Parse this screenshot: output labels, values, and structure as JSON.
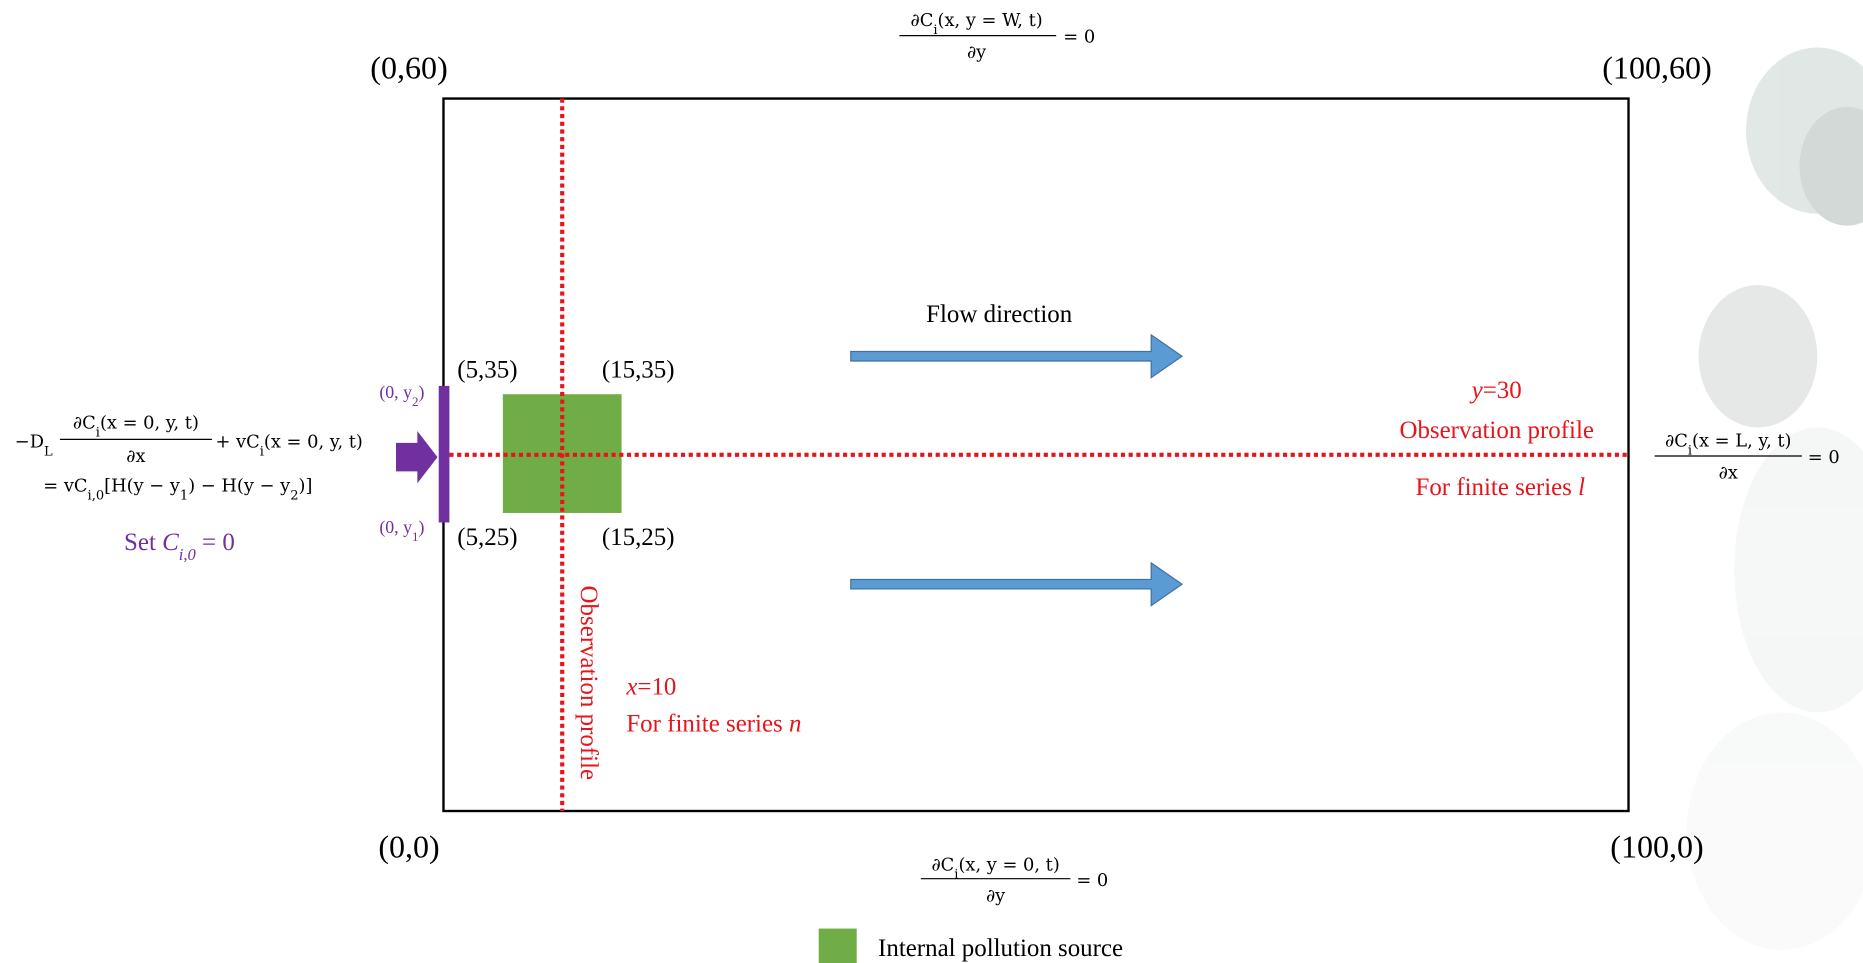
{
  "corners": {
    "top_left": "(0,60)",
    "top_right": "(100,60)",
    "bottom_left": "(0,0)",
    "bottom_right": "(100,0)"
  },
  "top_condition": {
    "numerator": [
      "∂C",
      "i",
      "(x, y = W, t)"
    ],
    "denominator": "∂y",
    "rhs": "= 0"
  },
  "bottom_condition": {
    "numerator": [
      "∂C",
      "i",
      "(x, y = 0, t)"
    ],
    "denominator": "∂y",
    "rhs": "= 0"
  },
  "right_condition": {
    "numerator": [
      "∂C",
      "i",
      "(x = L, y, t)"
    ],
    "denominator": "∂x",
    "rhs": "= 0"
  },
  "left_condition": {
    "lead": [
      "−D",
      "L"
    ],
    "numerator": [
      "∂C",
      "i",
      "(x = 0, y, t)"
    ],
    "denominator": "∂x",
    "advection": [
      "+ vC",
      "i",
      "(x = 0, y, t)"
    ],
    "line2": [
      "= vC",
      "i,0",
      "[H(y − y",
      "1",
      ") − H(y − y",
      "2",
      ")]"
    ],
    "setting": [
      "Set ",
      "C",
      "i,0",
      " = 0"
    ]
  },
  "inlet_labels": {
    "upper": [
      "(0, y",
      "2",
      ")"
    ],
    "lower": [
      "(0, y",
      "1",
      ")"
    ]
  },
  "source_corners": {
    "top_left": "(5,35)",
    "top_right": "(15,35)",
    "bottom_left": "(5,25)",
    "bottom_right": "(15,25)"
  },
  "horizontal_profile": {
    "position": [
      "y",
      "=30"
    ],
    "label": "Observation profile",
    "series": [
      "For finite series ",
      "l"
    ]
  },
  "vertical_profile": {
    "label": "Observation profile",
    "position": [
      "x",
      "=10"
    ],
    "series": [
      "For finite series ",
      "n"
    ]
  },
  "flow_label": "Flow direction",
  "legend": {
    "label": "Internal pollution source"
  }
}
